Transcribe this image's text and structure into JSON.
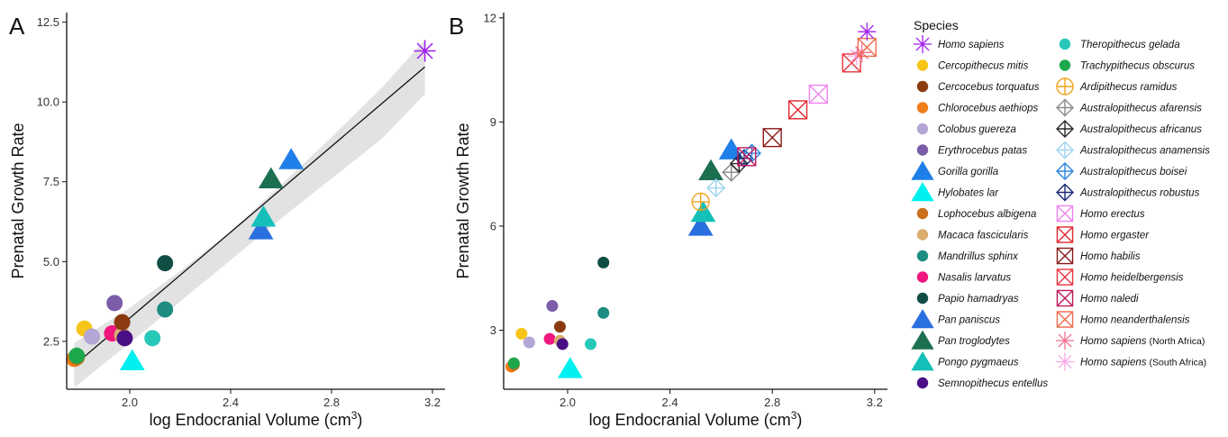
{
  "chart_data": [
    {
      "type": "scatter",
      "panel_label": "A",
      "xlabel": "log Endocranial Volume (cm",
      "xlabel_sup": "3",
      "xlabel_close": ")",
      "ylabel": "Prenatal Growth Rate",
      "xlim": [
        1.75,
        3.25
      ],
      "ylim": [
        1.0,
        12.8
      ],
      "xticks": [
        2.0,
        2.4,
        2.8,
        3.2
      ],
      "xtick_labels": [
        "2.0",
        "2.4",
        "2.8",
        "3.2"
      ],
      "yticks": [
        2.5,
        5.0,
        7.5,
        10.0,
        12.5
      ],
      "ytick_labels": [
        "2.5",
        "5.0",
        "7.5",
        "10.0",
        "12.5"
      ],
      "grid": false,
      "fit_line": {
        "x": [
          1.78,
          3.17
        ],
        "y": [
          1.75,
          11.1
        ]
      },
      "confidence_band": {
        "x": [
          1.78,
          2.0,
          2.2,
          2.4,
          2.6,
          2.8,
          3.0,
          3.17
        ],
        "upper": [
          2.45,
          3.55,
          4.7,
          5.95,
          7.4,
          8.9,
          10.45,
          11.95
        ],
        "lower": [
          1.05,
          2.45,
          3.75,
          5.05,
          6.35,
          7.6,
          8.85,
          10.25
        ]
      },
      "points": [
        {
          "species": "Chlorocebus aethiops",
          "x": 1.78,
          "y": 1.95
        },
        {
          "species": "Lophocebus albigena",
          "x": 1.79,
          "y": 2.0
        },
        {
          "species": "Trachypithecus obscurus",
          "x": 1.79,
          "y": 2.05
        },
        {
          "species": "Cercopithecus mitis",
          "x": 1.82,
          "y": 2.9
        },
        {
          "species": "Colobus guereza",
          "x": 1.85,
          "y": 2.65
        },
        {
          "species": "Nasalis larvatus",
          "x": 1.93,
          "y": 2.75
        },
        {
          "species": "Erythrocebus patas",
          "x": 1.94,
          "y": 3.7
        },
        {
          "species": "Macaca fascicularis",
          "x": 1.97,
          "y": 2.7
        },
        {
          "species": "Cercocebus torquatus",
          "x": 1.97,
          "y": 3.1
        },
        {
          "species": "Semnopithecus entellus",
          "x": 1.98,
          "y": 2.6
        },
        {
          "species": "Hylobates lar",
          "x": 2.01,
          "y": 1.9
        },
        {
          "species": "Theropithecus gelada",
          "x": 2.09,
          "y": 2.6
        },
        {
          "species": "Mandrillus sphinx",
          "x": 2.14,
          "y": 3.5
        },
        {
          "species": "Papio hamadryas",
          "x": 2.14,
          "y": 4.95
        },
        {
          "species": "Pan paniscus",
          "x": 2.52,
          "y": 6.0
        },
        {
          "species": "Pongo pygmaeus",
          "x": 2.53,
          "y": 6.4
        },
        {
          "species": "Pan troglodytes",
          "x": 2.56,
          "y": 7.6
        },
        {
          "species": "Gorilla gorilla",
          "x": 2.64,
          "y": 8.2
        },
        {
          "species": "Homo sapiens",
          "x": 3.17,
          "y": 11.6
        }
      ]
    },
    {
      "type": "scatter",
      "panel_label": "B",
      "xlabel": "log Endocranial Volume (cm",
      "xlabel_sup": "3",
      "xlabel_close": ")",
      "ylabel": "Prenatal Growth Rate",
      "xlim": [
        1.75,
        3.25
      ],
      "ylim": [
        1.3,
        12.15
      ],
      "xticks": [
        2.0,
        2.4,
        2.8,
        3.2
      ],
      "xtick_labels": [
        "2.0",
        "2.4",
        "2.8",
        "3.2"
      ],
      "yticks": [
        3,
        6,
        9,
        12
      ],
      "ytick_labels": [
        "3",
        "6",
        "9",
        "12"
      ],
      "grid": false,
      "points": [
        {
          "species": "Chlorocebus aethiops",
          "x": 1.78,
          "y": 1.95
        },
        {
          "species": "Lophocebus albigena",
          "x": 1.79,
          "y": 2.0
        },
        {
          "species": "Trachypithecus obscurus",
          "x": 1.79,
          "y": 2.05
        },
        {
          "species": "Cercopithecus mitis",
          "x": 1.82,
          "y": 2.9
        },
        {
          "species": "Colobus guereza",
          "x": 1.85,
          "y": 2.65
        },
        {
          "species": "Nasalis larvatus",
          "x": 1.93,
          "y": 2.75
        },
        {
          "species": "Erythrocebus patas",
          "x": 1.94,
          "y": 3.7
        },
        {
          "species": "Macaca fascicularis",
          "x": 1.97,
          "y": 2.7
        },
        {
          "species": "Cercocebus torquatus",
          "x": 1.97,
          "y": 3.1
        },
        {
          "species": "Semnopithecus entellus",
          "x": 1.98,
          "y": 2.6
        },
        {
          "species": "Hylobates lar",
          "x": 2.01,
          "y": 1.9
        },
        {
          "species": "Theropithecus gelada",
          "x": 2.09,
          "y": 2.6
        },
        {
          "species": "Mandrillus sphinx",
          "x": 2.14,
          "y": 3.5
        },
        {
          "species": "Papio hamadryas",
          "x": 2.14,
          "y": 4.95
        },
        {
          "species": "Pan paniscus",
          "x": 2.52,
          "y": 6.0
        },
        {
          "species": "Pongo pygmaeus",
          "x": 2.53,
          "y": 6.4
        },
        {
          "species": "Pan troglodytes",
          "x": 2.56,
          "y": 7.6
        },
        {
          "species": "Gorilla gorilla",
          "x": 2.64,
          "y": 8.2
        },
        {
          "species": "Ardipithecus ramidus",
          "x": 2.52,
          "y": 6.7
        },
        {
          "species": "Australopithecus anamensis",
          "x": 2.58,
          "y": 7.1
        },
        {
          "species": "Australopithecus afarensis",
          "x": 2.64,
          "y": 7.55
        },
        {
          "species": "Australopithecus africanus",
          "x": 2.67,
          "y": 7.8
        },
        {
          "species": "Australopithecus robustus",
          "x": 2.69,
          "y": 7.95
        },
        {
          "species": "Australopithecus boisei",
          "x": 2.72,
          "y": 8.1
        },
        {
          "species": "Homo naledi",
          "x": 2.7,
          "y": 8.0
        },
        {
          "species": "Homo habilis",
          "x": 2.8,
          "y": 8.55
        },
        {
          "species": "Homo ergaster",
          "x": 2.9,
          "y": 9.35
        },
        {
          "species": "Homo erectus",
          "x": 2.98,
          "y": 9.8
        },
        {
          "species": "Homo heidelbergensis",
          "x": 3.11,
          "y": 10.7
        },
        {
          "species": "Homo sapiens (South Africa)",
          "x": 3.13,
          "y": 10.9
        },
        {
          "species": "Homo sapiens (North Africa)",
          "x": 3.15,
          "y": 11.0
        },
        {
          "species": "Homo neanderthalensis",
          "x": 3.17,
          "y": 11.15
        },
        {
          "species": "Homo sapiens",
          "x": 3.17,
          "y": 11.6
        }
      ]
    }
  ],
  "legend": {
    "title": "Species",
    "placement": "right",
    "columns": [
      [
        {
          "name": "Homo sapiens",
          "suffix": "",
          "shape": "asterisk",
          "color": "#a020f0"
        },
        {
          "name": "Cercopithecus mitis",
          "suffix": "",
          "shape": "circle",
          "color": "#f5c518"
        },
        {
          "name": "Cercocebus torquatus",
          "suffix": "",
          "shape": "circle",
          "color": "#8b3a0f"
        },
        {
          "name": "Chlorocebus aethiops",
          "suffix": "",
          "shape": "circle",
          "color": "#f07c1a"
        },
        {
          "name": "Colobus guereza",
          "suffix": "",
          "shape": "circle",
          "color": "#b3a6d6"
        },
        {
          "name": "Erythrocebus patas",
          "suffix": "",
          "shape": "circle",
          "color": "#7a5ca8"
        },
        {
          "name": "Gorilla gorilla",
          "suffix": "",
          "shape": "triangle",
          "color": "#1f7fe8"
        },
        {
          "name": "Hylobates lar",
          "suffix": "",
          "shape": "triangle",
          "color": "#00f0f0"
        },
        {
          "name": "Lophocebus albigena",
          "suffix": "",
          "shape": "circle",
          "color": "#c8701c"
        },
        {
          "name": "Macaca fascicularis",
          "suffix": "",
          "shape": "circle",
          "color": "#d9ad6e"
        },
        {
          "name": "Mandrillus sphinx",
          "suffix": "",
          "shape": "circle",
          "color": "#1e8c80"
        },
        {
          "name": "Nasalis larvatus",
          "suffix": "",
          "shape": "circle",
          "color": "#f0167e"
        },
        {
          "name": "Papio hamadryas",
          "suffix": "",
          "shape": "circle",
          "color": "#0f4d45"
        },
        {
          "name": "Pan paniscus",
          "suffix": "",
          "shape": "triangle",
          "color": "#2a6fe0"
        },
        {
          "name": "Pan troglodytes",
          "suffix": "",
          "shape": "triangle",
          "color": "#1c7050"
        },
        {
          "name": "Pongo pygmaeus",
          "suffix": "",
          "shape": "triangle",
          "color": "#14c0b8"
        },
        {
          "name": "Semnopithecus entellus",
          "suffix": "",
          "shape": "circle",
          "color": "#4b0f85"
        }
      ],
      [
        {
          "name": "Theropithecus gelada",
          "suffix": "",
          "shape": "circle",
          "color": "#28c8b8"
        },
        {
          "name": "Trachypithecus obscurus",
          "suffix": "",
          "shape": "circle",
          "color": "#1ea84c"
        },
        {
          "name": "Ardipithecus ramidus",
          "suffix": "",
          "shape": "circleplus",
          "color": "#f2a41c"
        },
        {
          "name": "Australopithecus afarensis",
          "suffix": "",
          "shape": "diamondplus",
          "color": "#8a8a8a"
        },
        {
          "name": "Australopithecus africanus",
          "suffix": "",
          "shape": "diamondplus",
          "color": "#2a2a2a"
        },
        {
          "name": "Australopithecus anamensis",
          "suffix": "",
          "shape": "diamondplus",
          "color": "#9fd4ee"
        },
        {
          "name": "Australopithecus boisei",
          "suffix": "",
          "shape": "diamondplus",
          "color": "#2e86de"
        },
        {
          "name": "Australopithecus robustus",
          "suffix": "",
          "shape": "diamondplus",
          "color": "#1a2a78"
        },
        {
          "name": "Homo erectus",
          "suffix": "",
          "shape": "squarex",
          "color": "#ee82ee"
        },
        {
          "name": "Homo ergaster",
          "suffix": "",
          "shape": "squarex",
          "color": "#e0262e"
        },
        {
          "name": "Homo habilis",
          "suffix": "",
          "shape": "squarex",
          "color": "#8b1a1a"
        },
        {
          "name": "Homo heidelbergensis",
          "suffix": "",
          "shape": "squarex",
          "color": "#e8343c"
        },
        {
          "name": "Homo naledi",
          "suffix": "",
          "shape": "squarex",
          "color": "#c0185c"
        },
        {
          "name": "Homo neanderthalensis",
          "suffix": "",
          "shape": "squarex",
          "color": "#f06a4a"
        },
        {
          "name": "Homo sapiens",
          "suffix": "(North Africa)",
          "shape": "asterisk",
          "color": "#f26e8e"
        },
        {
          "name": "Homo sapiens",
          "suffix": "(South Africa)",
          "shape": "asterisk",
          "color": "#f7a8e6"
        }
      ]
    ]
  }
}
